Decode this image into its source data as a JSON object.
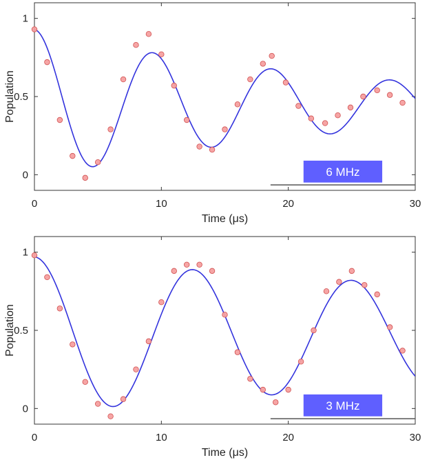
{
  "colors": {
    "fit_line": "#3333dd",
    "marker_fill": "#f5a0a0",
    "marker_stroke": "#d05050",
    "label_box": "#5f5fff",
    "axis": "#333333"
  },
  "chart_data": [
    {
      "type": "scatter",
      "id": "top",
      "xlabel": "Time (μs)",
      "ylabel": "Population",
      "xlim": [
        0,
        30
      ],
      "ylim": [
        -0.1,
        1.1
      ],
      "xticks": [
        0,
        10,
        20,
        30
      ],
      "yticks": [
        0,
        0.5,
        1
      ],
      "ytick_labels": [
        "0",
        "0.5",
        "1"
      ],
      "box_label": "6 MHz",
      "series": [
        {
          "name": "data",
          "x": [
            0,
            1,
            2,
            3,
            4,
            5,
            6,
            7,
            8,
            9,
            10,
            11,
            12,
            13,
            14,
            15,
            16,
            17,
            18,
            18.7,
            19.8,
            20.8,
            21.8,
            22.9,
            23.9,
            24.9,
            25.9,
            27.0,
            28.0,
            29.0
          ],
          "y": [
            0.93,
            0.72,
            0.35,
            0.12,
            -0.02,
            0.08,
            0.29,
            0.61,
            0.83,
            0.9,
            0.77,
            0.57,
            0.35,
            0.18,
            0.16,
            0.29,
            0.45,
            0.61,
            0.71,
            0.76,
            0.59,
            0.44,
            0.36,
            0.33,
            0.38,
            0.43,
            0.5,
            0.54,
            0.51,
            0.46
          ]
        },
        {
          "name": "fit",
          "model": {
            "offset": 0.45,
            "amplitude": 0.48,
            "tau": 25,
            "period": 9.35,
            "phase_deg": 0
          }
        }
      ]
    },
    {
      "type": "scatter",
      "id": "bottom",
      "xlabel": "Time (μs)",
      "ylabel": "Population",
      "xlim": [
        0,
        30
      ],
      "ylim": [
        -0.1,
        1.1
      ],
      "xticks": [
        0,
        10,
        20,
        30
      ],
      "yticks": [
        0,
        0.5,
        1
      ],
      "ytick_labels": [
        "0",
        "0.5",
        "1"
      ],
      "box_label": "3 MHz",
      "series": [
        {
          "name": "data",
          "x": [
            0,
            1,
            2,
            3,
            4,
            5,
            6,
            7,
            8,
            9,
            10,
            11,
            12,
            13,
            14,
            15,
            16,
            17,
            18,
            19,
            20,
            21,
            22,
            23,
            24,
            25,
            26,
            27,
            28,
            29
          ],
          "y": [
            0.98,
            0.84,
            0.64,
            0.41,
            0.17,
            0.03,
            -0.05,
            0.06,
            0.25,
            0.43,
            0.68,
            0.88,
            0.92,
            0.92,
            0.88,
            0.6,
            0.36,
            0.19,
            0.12,
            0.04,
            0.12,
            0.3,
            0.5,
            0.75,
            0.81,
            0.88,
            0.79,
            0.73,
            0.52,
            0.37
          ]
        },
        {
          "name": "fit",
          "model": {
            "offset": 0.47,
            "amplitude": 0.5,
            "tau": 70,
            "period": 12.5,
            "phase_deg": 0
          }
        }
      ]
    }
  ]
}
